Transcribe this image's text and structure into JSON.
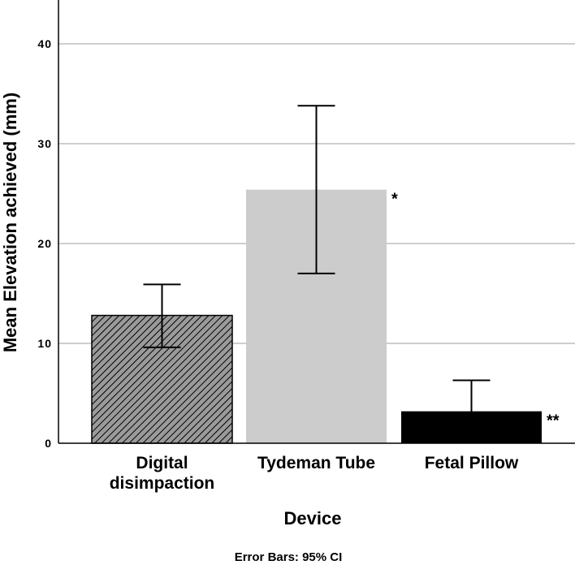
{
  "chart_data": {
    "type": "bar",
    "title": "",
    "xlabel": "Device",
    "ylabel": "Mean Elevation achieved (mm)",
    "ylim": [
      0,
      45
    ],
    "yticks": [
      0,
      10,
      20,
      30,
      40
    ],
    "ytick_labels": [
      "0",
      "10",
      "20",
      "30",
      "40"
    ],
    "grid": "horizontal",
    "legend": null,
    "categories": [
      "Digital disimpaction",
      "Tydeman Tube",
      "Fetal Pillow"
    ],
    "category_lines": [
      [
        "Digital",
        "disimpaction"
      ],
      [
        "Tydeman Tube"
      ],
      [
        "Fetal Pillow"
      ]
    ],
    "values": [
      12.8,
      25.4,
      3.2
    ],
    "error_bars": {
      "type": "95% CI",
      "lower": [
        9.6,
        17.0,
        0.2
      ],
      "upper": [
        15.9,
        33.8,
        6.3
      ]
    },
    "bar_styles": [
      {
        "fill": "#9a9a9a",
        "pattern": "diagonal-hatch",
        "stroke": "#000000"
      },
      {
        "fill": "#cccccc",
        "pattern": "none",
        "stroke": "none"
      },
      {
        "fill": "#000000",
        "pattern": "none",
        "stroke": "none"
      }
    ],
    "annotations": [
      "",
      "*",
      "**"
    ],
    "footnote": "Error Bars: 95% CI"
  },
  "colors": {
    "gridline": "#bdbdbd",
    "axis": "#000000",
    "hatch_fill": "#9a9a9a",
    "light_bar": "#cccccc",
    "dark_bar": "#000000"
  }
}
